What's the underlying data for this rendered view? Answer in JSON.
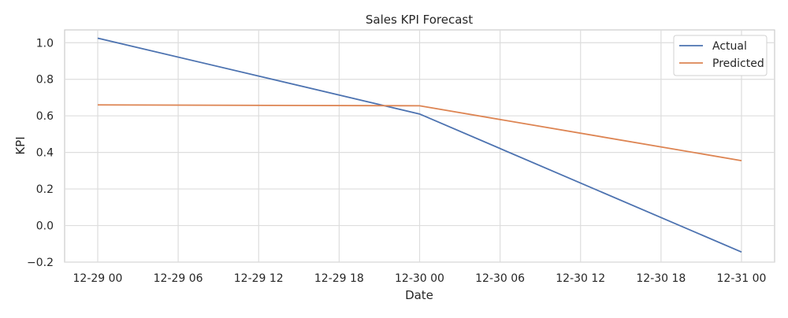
{
  "chart_data": {
    "type": "line",
    "title": "Sales KPI Forecast",
    "xlabel": "Date",
    "ylabel": "KPI",
    "x": [
      "12-29 00",
      "12-30 00",
      "12-31 00"
    ],
    "xticks": [
      "12-29 00",
      "12-29 06",
      "12-29 12",
      "12-29 18",
      "12-30 00",
      "12-30 06",
      "12-30 12",
      "12-30 18",
      "12-31 00"
    ],
    "yticks": [
      "1.0",
      "0.8",
      "0.6",
      "0.4",
      "0.2",
      "0.0",
      "−0.2"
    ],
    "ylim": [
      -0.2,
      1.07
    ],
    "grid": true,
    "legend": "top-right",
    "series": [
      {
        "name": "Actual",
        "color": "#4c72b0",
        "values": [
          1.025,
          0.61,
          -0.145
        ]
      },
      {
        "name": "Predicted",
        "color": "#dd8452",
        "values": [
          0.66,
          0.655,
          0.355
        ]
      }
    ]
  }
}
